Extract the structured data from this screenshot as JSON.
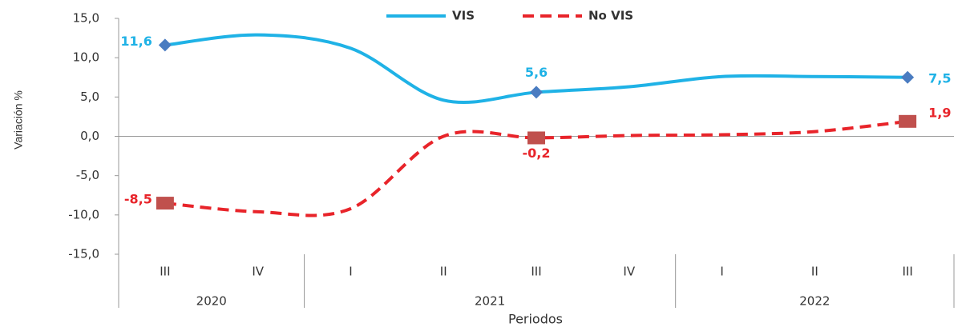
{
  "chart_data": {
    "type": "line",
    "x_label": "Periodos",
    "y_label": "Variación %",
    "categories": [
      "III",
      "IV",
      "I",
      "II",
      "III",
      "IV",
      "I",
      "II",
      "III"
    ],
    "year_groups": [
      {
        "label": "2020",
        "span": 2
      },
      {
        "label": "2021",
        "span": 4
      },
      {
        "label": "2022",
        "span": 3
      }
    ],
    "series": [
      {
        "name": "VIS",
        "color": "#1fb2e6",
        "marker_color": "#4a7cc1",
        "dashed": false,
        "values": [
          11.6,
          12.9,
          11.2,
          4.6,
          5.6,
          6.3,
          7.6,
          7.6,
          7.5
        ],
        "value_labels": [
          "11,6",
          null,
          null,
          null,
          "5,6",
          null,
          null,
          null,
          "7,5"
        ]
      },
      {
        "name": "No VIS",
        "color": "#e8242a",
        "marker_color": "#c0504d",
        "dashed": true,
        "values": [
          -8.5,
          -9.6,
          -9.2,
          0.0,
          -0.2,
          0.1,
          0.2,
          0.6,
          1.9
        ],
        "value_labels": [
          "-8,5",
          null,
          null,
          null,
          "-0,2",
          null,
          null,
          null,
          "1,9"
        ]
      }
    ],
    "ylim": [
      -15,
      15
    ],
    "yticks": [
      {
        "value": -15,
        "label": "-15,0"
      },
      {
        "value": -10,
        "label": "-10,0"
      },
      {
        "value": -5,
        "label": "-5,0"
      },
      {
        "value": 0,
        "label": "0,0"
      },
      {
        "value": 5,
        "label": "5,0"
      },
      {
        "value": 10,
        "label": "10,0"
      },
      {
        "value": 15,
        "label": "15,0"
      }
    ],
    "legend": "top"
  }
}
